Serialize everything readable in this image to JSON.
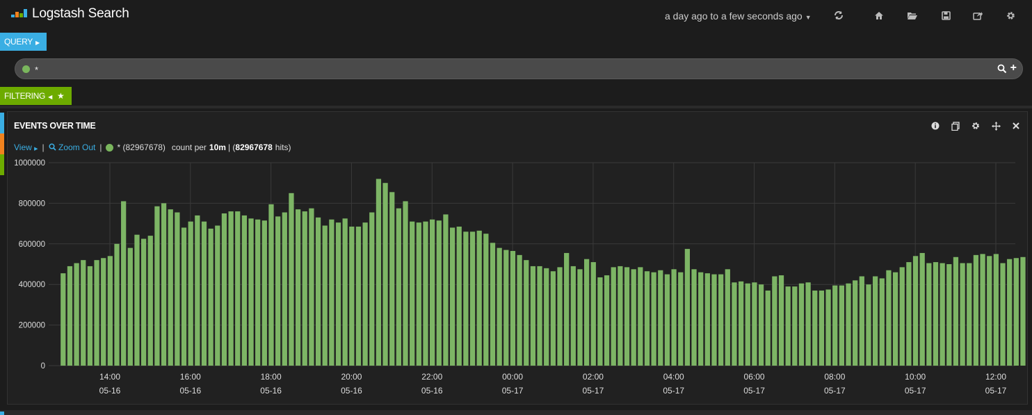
{
  "app": {
    "title": "Logstash Search",
    "time_range": "a day ago to a few seconds ago"
  },
  "toolbar_icons": [
    "refresh-icon",
    "home-icon",
    "folder-open-icon",
    "save-icon",
    "share-icon",
    "gear-icon"
  ],
  "query": {
    "tag_label": "QUERY",
    "value": "*"
  },
  "filtering": {
    "tag_label": "FILTERING"
  },
  "colors": {
    "query_blue": "#3aaee3",
    "filter_green": "#6dab00",
    "strip_orange": "#f0821e",
    "series_green": "#7ab65d",
    "bar_fill": "#7db565"
  },
  "panel": {
    "title": "EVENTS OVER TIME",
    "tool_icons": [
      "info-icon",
      "inspect-icon",
      "gear-icon",
      "move-icon",
      "close-icon"
    ],
    "legend": {
      "view_label": "View",
      "zoom_label": "Zoom Out",
      "query_label": "* (82967678)",
      "count_prefix": "count per",
      "interval": "10m",
      "hits_count": "82967678",
      "hits_suffix": "hits"
    }
  },
  "chart_data": {
    "type": "bar",
    "title": "",
    "xlabel": "",
    "ylabel": "",
    "ylim": [
      0,
      1000000
    ],
    "y_ticks": [
      0,
      200000,
      400000,
      600000,
      800000,
      1000000
    ],
    "x_ticks": [
      {
        "time": "14:00",
        "date": "05-16"
      },
      {
        "time": "16:00",
        "date": "05-16"
      },
      {
        "time": "18:00",
        "date": "05-16"
      },
      {
        "time": "20:00",
        "date": "05-16"
      },
      {
        "time": "22:00",
        "date": "05-16"
      },
      {
        "time": "00:00",
        "date": "05-17"
      },
      {
        "time": "02:00",
        "date": "05-17"
      },
      {
        "time": "04:00",
        "date": "05-17"
      },
      {
        "time": "06:00",
        "date": "05-17"
      },
      {
        "time": "08:00",
        "date": "05-17"
      },
      {
        "time": "10:00",
        "date": "05-17"
      },
      {
        "time": "12:00",
        "date": "05-17"
      }
    ],
    "grid": true,
    "bar_interval": "10m",
    "x_start": "05-16 12:50",
    "series": [
      {
        "name": "*",
        "values": [
          455000,
          490000,
          505000,
          520000,
          490000,
          520000,
          530000,
          540000,
          600000,
          810000,
          580000,
          645000,
          625000,
          640000,
          785000,
          800000,
          770000,
          755000,
          680000,
          710000,
          740000,
          710000,
          675000,
          690000,
          750000,
          760000,
          760000,
          740000,
          725000,
          720000,
          715000,
          795000,
          735000,
          755000,
          850000,
          770000,
          760000,
          775000,
          730000,
          690000,
          720000,
          705000,
          725000,
          685000,
          685000,
          705000,
          755000,
          920000,
          900000,
          855000,
          775000,
          810000,
          710000,
          705000,
          710000,
          720000,
          715000,
          745000,
          680000,
          685000,
          660000,
          660000,
          665000,
          650000,
          605000,
          580000,
          570000,
          565000,
          545000,
          520000,
          490000,
          490000,
          480000,
          465000,
          485000,
          555000,
          490000,
          475000,
          525000,
          510000,
          435000,
          445000,
          485000,
          490000,
          485000,
          475000,
          485000,
          465000,
          460000,
          470000,
          450000,
          475000,
          460000,
          575000,
          475000,
          460000,
          455000,
          450000,
          450000,
          475000,
          410000,
          415000,
          405000,
          410000,
          400000,
          370000,
          440000,
          445000,
          390000,
          390000,
          405000,
          410000,
          370000,
          370000,
          375000,
          395000,
          395000,
          405000,
          420000,
          440000,
          400000,
          440000,
          430000,
          470000,
          460000,
          485000,
          510000,
          540000,
          555000,
          505000,
          510000,
          505000,
          500000,
          535000,
          505000,
          505000,
          545000,
          550000,
          540000,
          550000,
          505000,
          525000,
          530000,
          535000
        ]
      }
    ]
  }
}
